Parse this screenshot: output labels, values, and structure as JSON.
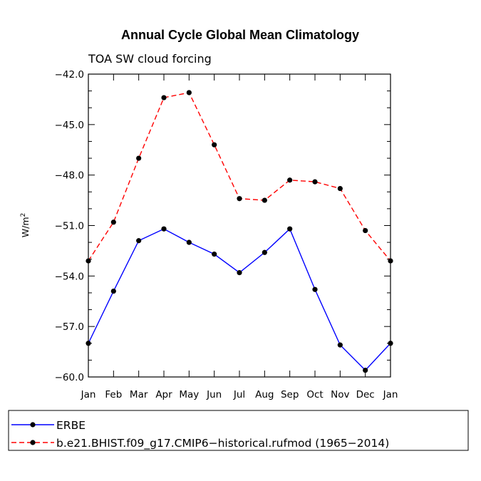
{
  "chart_data": {
    "type": "line",
    "title": "Annual Cycle Global Mean Climatology",
    "subtitle": "TOA SW cloud forcing",
    "xlabel": "",
    "ylabel": "W/m²",
    "ylabel_base": "W/m",
    "ylabel_sup": "2",
    "categories": [
      "Jan",
      "Feb",
      "Mar",
      "Apr",
      "May",
      "Jun",
      "Jul",
      "Aug",
      "Sep",
      "Oct",
      "Nov",
      "Dec",
      "Jan"
    ],
    "ylim": [
      -60.0,
      -42.0
    ],
    "yticks": [
      "-42.0",
      "-45.0",
      "-48.0",
      "-51.0",
      "-54.0",
      "-57.0",
      "-60.0"
    ],
    "ytick_values": [
      -42,
      -45,
      -48,
      -51,
      -54,
      -57,
      -60
    ],
    "series": [
      {
        "name": "ERBE",
        "color": "#0000ff",
        "dash": "solid",
        "values": [
          -58.0,
          -54.9,
          -51.9,
          -51.2,
          -52.0,
          -52.7,
          -53.8,
          -52.6,
          -51.2,
          -54.8,
          -58.1,
          -59.6,
          -58.0
        ]
      },
      {
        "name": "b.e21.BHIST.f09_g17.CMIP6-historical.rufmod (1965-2014)",
        "color": "#ff0000",
        "dash": "dashed",
        "values": [
          -53.1,
          -50.8,
          -47.0,
          -43.4,
          -43.1,
          -46.2,
          -49.4,
          -49.5,
          -48.3,
          -48.4,
          -48.8,
          -51.3,
          -53.1
        ]
      }
    ],
    "legend_position": "bottom"
  }
}
